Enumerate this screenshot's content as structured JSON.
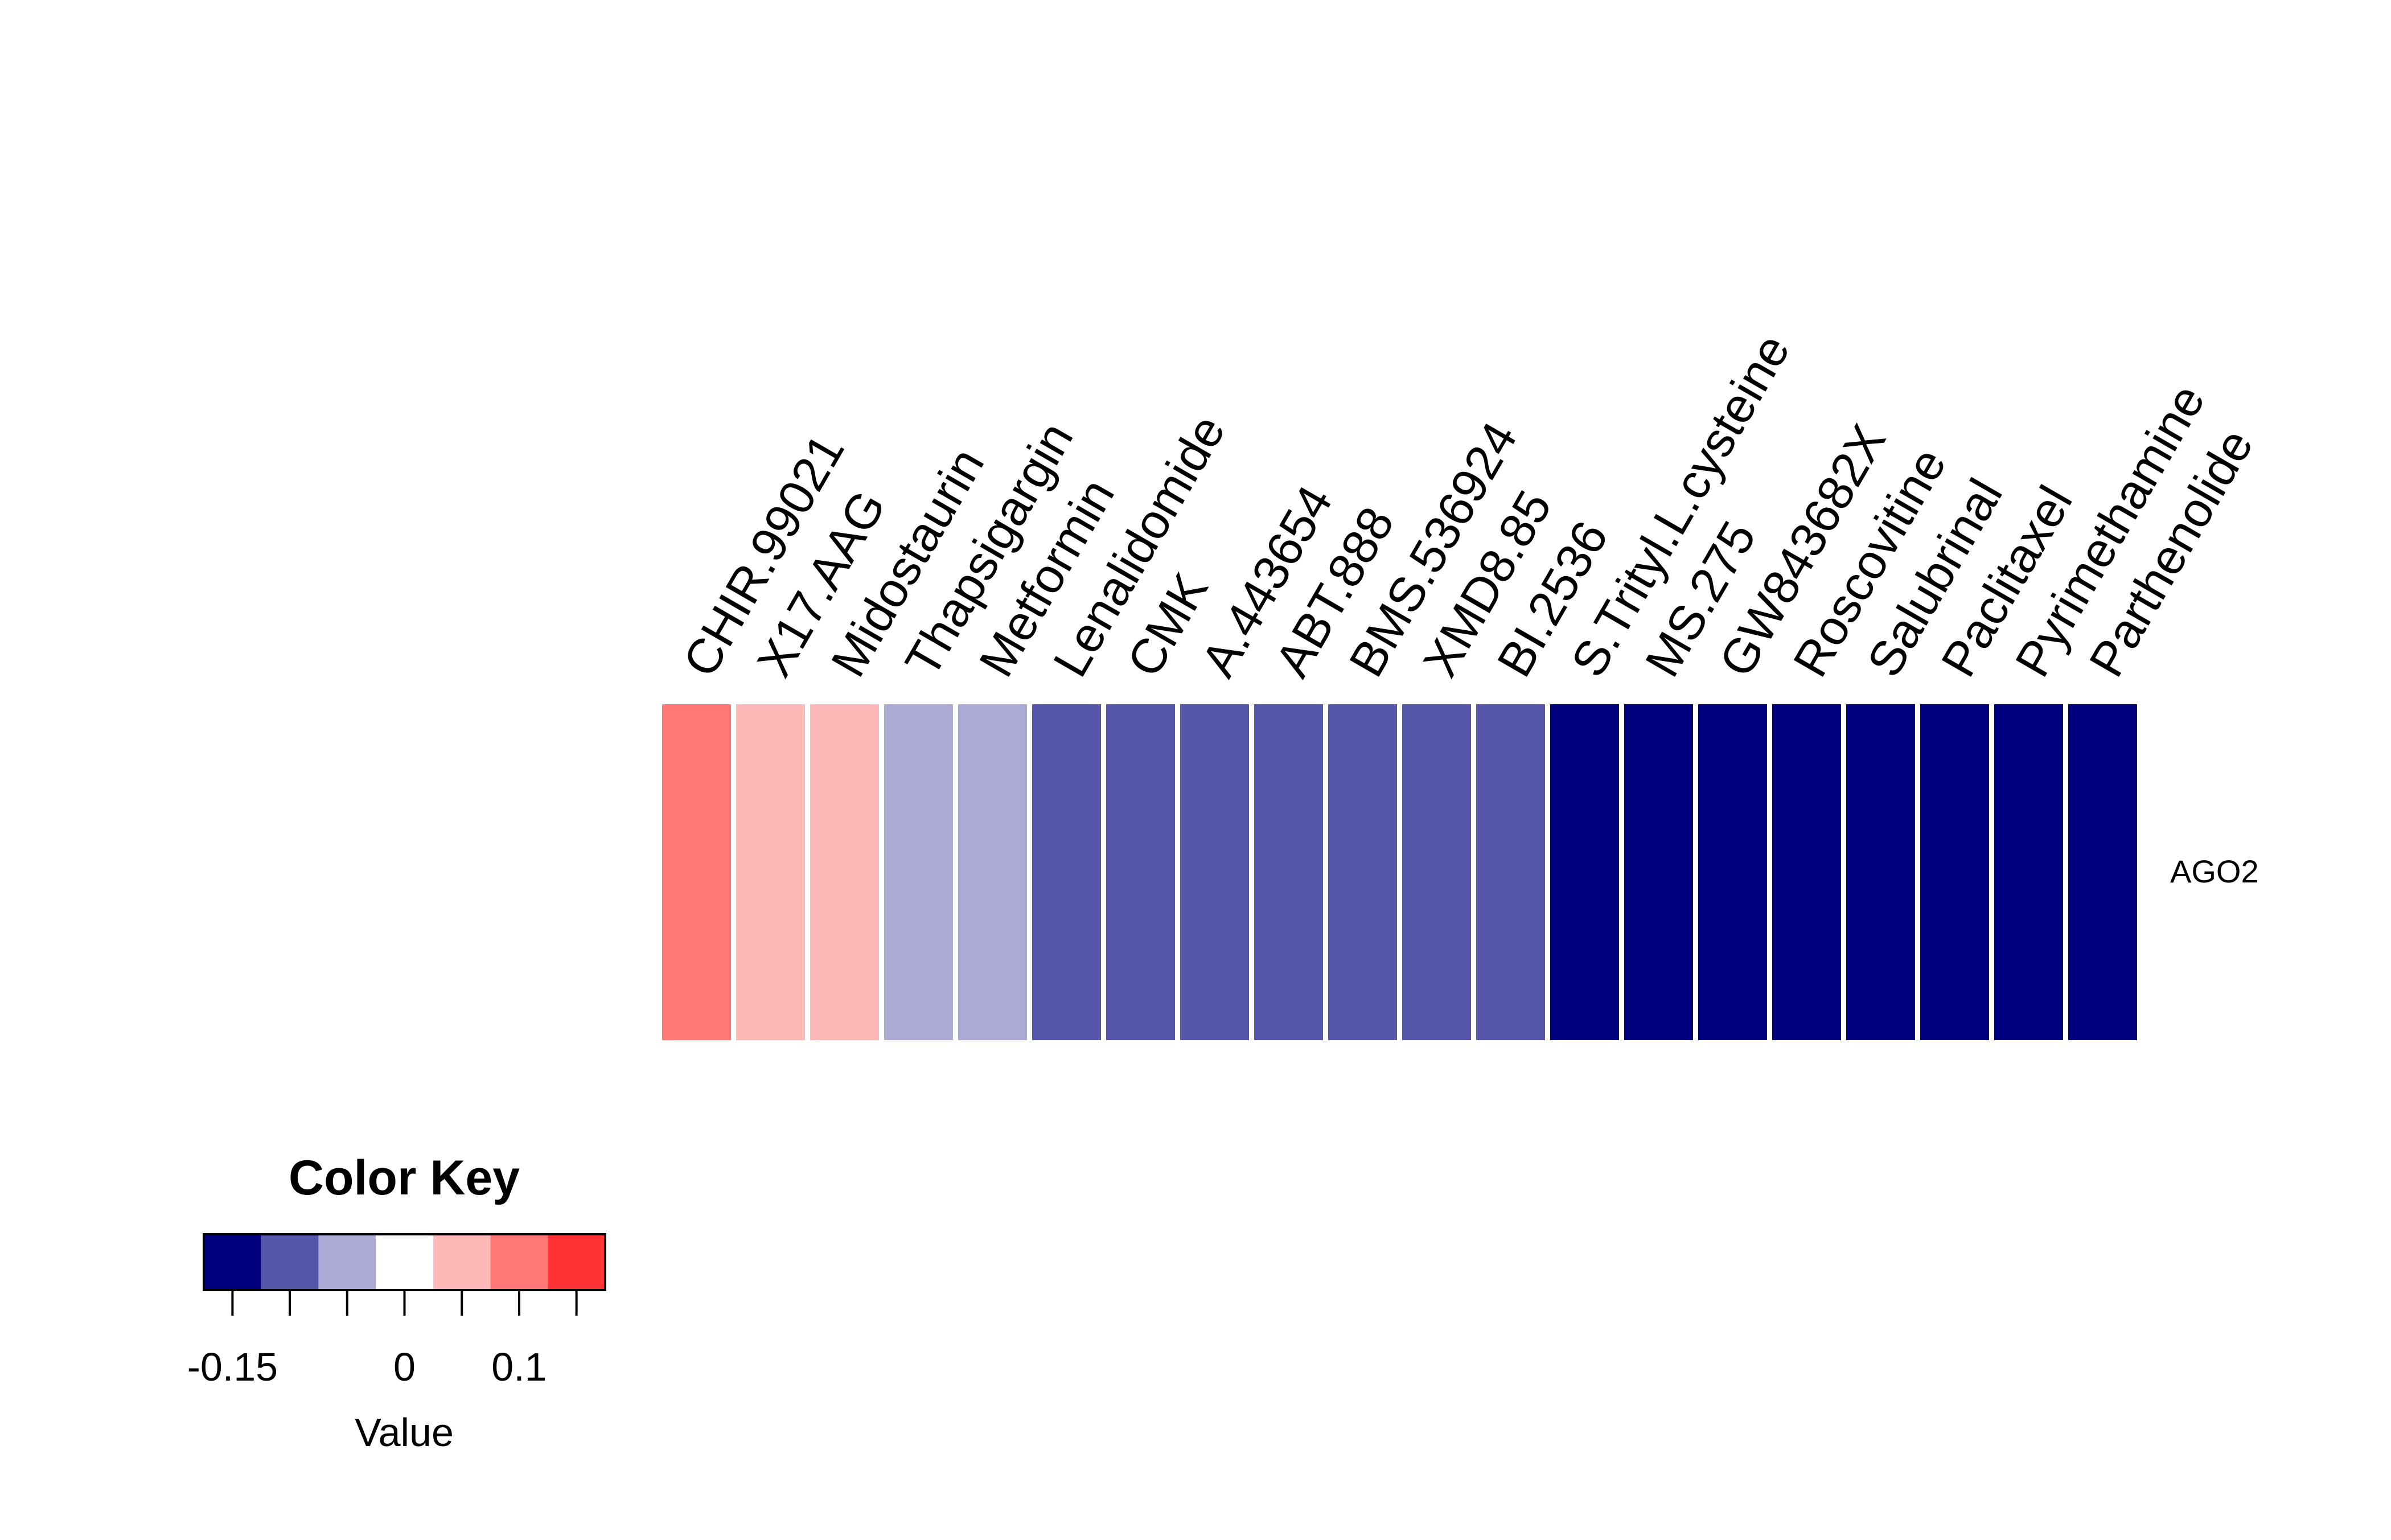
{
  "chart_data": {
    "type": "heatmap",
    "rows": [
      "AGO2"
    ],
    "columns": [
      "CHIR.99021",
      "X17.AAG",
      "Midostaurin",
      "Thapsigargin",
      "Metformin",
      "Lenalidomide",
      "CMK",
      "A.443654",
      "ABT.888",
      "BMS.536924",
      "XMD8.85",
      "BI.2536",
      "S.Trityl.L.cysteine",
      "MS.275",
      "GW843682X",
      "Roscovitine",
      "Salubrinal",
      "Paclitaxel",
      "Pyrimethamine",
      "Parthenolide"
    ],
    "values": [
      [
        0.1,
        0.05,
        0.05,
        -0.05,
        -0.05,
        -0.1,
        -0.1,
        -0.1,
        -0.1,
        -0.1,
        -0.1,
        -0.1,
        -0.15,
        -0.15,
        -0.15,
        -0.15,
        -0.15,
        -0.15,
        -0.15,
        -0.15
      ]
    ],
    "color_key": {
      "title": "Color Key",
      "xlabel": "Value",
      "range": [
        -0.175,
        0.175
      ],
      "breaks": [
        -0.175,
        -0.125,
        -0.075,
        -0.025,
        0.025,
        0.075,
        0.125,
        0.175
      ],
      "colors": [
        "#00007f",
        "#5555aa",
        "#aaaad4",
        "#ffffff",
        "#ffb8b8",
        "#ff7777",
        "#ff3333"
      ],
      "tick_values": [
        -0.15,
        -0.1,
        -0.05,
        0,
        0.05,
        0.1,
        0.15
      ],
      "tick_labels": [
        "-0.15",
        "",
        "",
        "0",
        "",
        "0.1",
        ""
      ]
    }
  }
}
